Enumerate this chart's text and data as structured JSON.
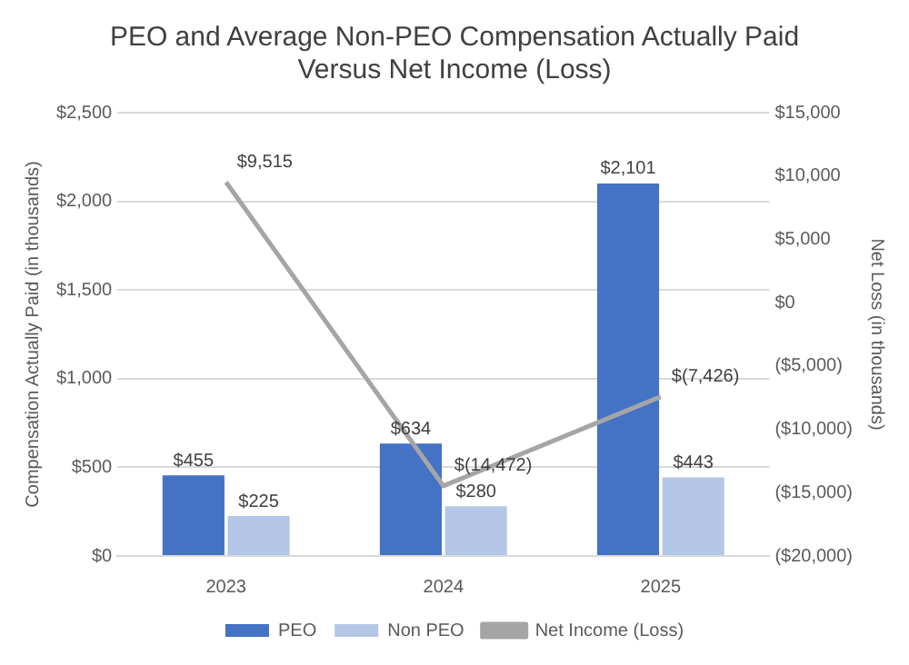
{
  "chart_data": {
    "type": "bar",
    "title": "PEO and Average Non-PEO Compensation Actually Paid\nVersus Net Income (Loss)",
    "ylabel": "Compensation Actually Paid (in thousands)",
    "y2label": "Net Loss (in thousands)",
    "categories": [
      "2023",
      "2024",
      "2025"
    ],
    "series": [
      {
        "name": "PEO",
        "color": "#4472c4",
        "values": [
          455,
          634,
          2101
        ],
        "value_labels": [
          "$455",
          "$634",
          "$2,101"
        ]
      },
      {
        "name": "Non PEO",
        "color": "#b4c7e7",
        "values": [
          225,
          280,
          443
        ],
        "value_labels": [
          "$225",
          "$280",
          "$443"
        ]
      },
      {
        "name": "Net Income (Loss)",
        "type": "line",
        "axis": "y2",
        "color": "#a5a5a5",
        "values": [
          9515,
          -14472,
          -7426
        ],
        "value_labels": [
          "$9,515",
          "$(14,472)",
          "$(7,426)"
        ]
      }
    ],
    "ylim": [
      0,
      2500
    ],
    "yticks": [
      {
        "value": 0,
        "label": "$0"
      },
      {
        "value": 500,
        "label": "$500"
      },
      {
        "value": 1000,
        "label": "$1,000"
      },
      {
        "value": 1500,
        "label": "$1,500"
      },
      {
        "value": 2000,
        "label": "$2,000"
      },
      {
        "value": 2500,
        "label": "$2,500"
      }
    ],
    "y2lim": [
      -20000,
      15000
    ],
    "y2ticks": [
      {
        "value": -20000,
        "label": "($20,000)"
      },
      {
        "value": -15000,
        "label": "($15,000)"
      },
      {
        "value": -10000,
        "label": "($10,000)"
      },
      {
        "value": -5000,
        "label": "($5,000)"
      },
      {
        "value": 0,
        "label": "$0"
      },
      {
        "value": 5000,
        "label": "$5,000"
      },
      {
        "value": 10000,
        "label": "$10,000"
      },
      {
        "value": 15000,
        "label": "$15,000"
      }
    ],
    "grid": "y",
    "legend": "bottom",
    "marker": "none",
    "line_style": "solid"
  }
}
